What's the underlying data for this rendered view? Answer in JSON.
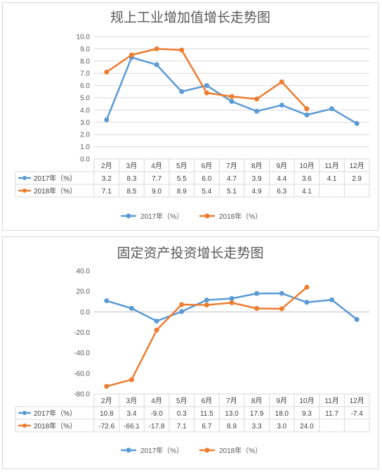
{
  "colors": {
    "series_2017": "#5B9BD5",
    "series_2018": "#ED7D31",
    "grid": "#d9d9d9",
    "axis": "#bfbfbf"
  },
  "chart_data": [
    {
      "type": "line",
      "title": "规上工业增加值增长走势图",
      "categories": [
        "2月",
        "3月",
        "4月",
        "5月",
        "6月",
        "7月",
        "8月",
        "9月",
        "10月",
        "11月",
        "12月"
      ],
      "ylim": [
        0,
        10
      ],
      "ytick_step": 1,
      "ytick_decimals": 1,
      "grid": true,
      "legend_position": "bottom",
      "table_below": true,
      "series": [
        {
          "name": "2017年（%）",
          "values": [
            3.2,
            8.3,
            7.7,
            5.5,
            6.0,
            4.7,
            3.9,
            4.4,
            3.6,
            4.1,
            2.9
          ],
          "labels": [
            "3.2",
            "8.3",
            "7.7",
            "5.5",
            "6.0",
            "4.7",
            "3.9",
            "4.4",
            "3.6",
            "4.1",
            "2.9"
          ]
        },
        {
          "name": "2018年（%）",
          "values": [
            7.1,
            8.5,
            9.0,
            8.9,
            5.4,
            5.1,
            4.9,
            6.3,
            4.1,
            null,
            null
          ],
          "labels": [
            "7.1",
            "8.5",
            "9.0",
            "8.9",
            "5.4",
            "5.1",
            "4.9",
            "6.3",
            "4.1",
            "",
            ""
          ]
        }
      ]
    },
    {
      "type": "line",
      "title": "固定资产投资增长走势图",
      "categories": [
        "2月",
        "3月",
        "4月",
        "5月",
        "6月",
        "7月",
        "8月",
        "9月",
        "10月",
        "11月",
        "12月"
      ],
      "ylim": [
        -80,
        40
      ],
      "ytick_step": 20,
      "ytick_decimals": 1,
      "grid": false,
      "legend_position": "bottom",
      "table_below": true,
      "series": [
        {
          "name": "2017年（%）",
          "values": [
            10.8,
            3.4,
            -9.0,
            0.3,
            11.5,
            13.0,
            17.9,
            18.0,
            9.3,
            11.7,
            -7.4
          ],
          "labels": [
            "10.8",
            "3.4",
            "-9.0",
            "0.3",
            "11.5",
            "13.0",
            "17.9",
            "18.0",
            "9.3",
            "11.7",
            "-7.4"
          ]
        },
        {
          "name": "2018年（%）",
          "values": [
            -72.6,
            -66.1,
            -17.8,
            7.1,
            6.7,
            8.9,
            3.3,
            3.0,
            24.0,
            null,
            null
          ],
          "labels": [
            "-72.6",
            "-66.1",
            "-17.8",
            "7.1",
            "6.7",
            "8.9",
            "3.3",
            "3.0",
            "24.0",
            "",
            ""
          ]
        }
      ]
    }
  ]
}
